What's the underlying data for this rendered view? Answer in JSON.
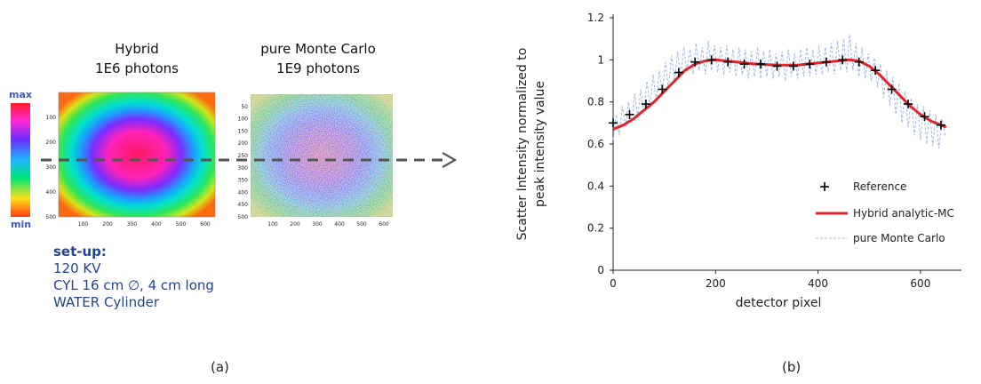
{
  "panel_a": {
    "label": "(a)",
    "colorbar": {
      "max": "max",
      "min": "min"
    },
    "hybrid": {
      "title_line1": "Hybrid",
      "title_line2": "1E6 photons",
      "y_ticks": [
        "100",
        "200",
        "300",
        "400",
        "500"
      ],
      "x_ticks": [
        "100",
        "200",
        "300",
        "400",
        "500",
        "600"
      ]
    },
    "mc": {
      "title_line1": "pure Monte Carlo",
      "title_line2": "1E9 photons",
      "y_ticks": [
        "50",
        "100",
        "150",
        "200",
        "250",
        "300",
        "350",
        "400",
        "450",
        "500"
      ],
      "x_ticks": [
        "100",
        "200",
        "300",
        "400",
        "500",
        "600"
      ]
    },
    "setup": {
      "heading": "set-up:",
      "line1": "120 KV",
      "line2": "CYL 16 cm ∅, 4 cm long",
      "line3": "WATER Cylinder"
    }
  },
  "panel_b": {
    "label": "(b)"
  },
  "chart_data": {
    "type": "line",
    "xlabel": "detector pixel",
    "ylabel_line1": "Scatter Intensity normalized to",
    "ylabel_line2": "peak intensity value",
    "xlim": [
      0,
      680
    ],
    "ylim": [
      0,
      1.2
    ],
    "x_ticks": [
      0,
      200,
      400,
      600
    ],
    "y_ticks": [
      0,
      0.2,
      0.4,
      0.6,
      0.8,
      1,
      1.2
    ],
    "x_tick_labels": [
      "0",
      "200",
      "400",
      "600"
    ],
    "y_tick_labels": [
      "0",
      "0.2",
      "0.4",
      "0.6",
      "0.8",
      "1",
      "1.2"
    ],
    "grid": false,
    "legend_position": "bottom-right",
    "series": [
      {
        "name": "Reference",
        "style": "plus-markers",
        "color": "#000000",
        "x": [
          0,
          32,
          64,
          96,
          128,
          160,
          192,
          224,
          256,
          288,
          320,
          352,
          384,
          416,
          448,
          480,
          512,
          544,
          576,
          608,
          640
        ],
        "y": [
          0.7,
          0.74,
          0.79,
          0.86,
          0.94,
          0.99,
          1.0,
          0.99,
          0.98,
          0.98,
          0.97,
          0.97,
          0.98,
          0.99,
          1.0,
          0.99,
          0.95,
          0.86,
          0.79,
          0.73,
          0.69
        ]
      },
      {
        "name": "Hybrid analytic-MC",
        "style": "solid",
        "color": "#e0262b",
        "x": [
          0,
          20,
          40,
          60,
          80,
          100,
          120,
          140,
          160,
          180,
          200,
          240,
          280,
          320,
          360,
          400,
          440,
          460,
          480,
          500,
          520,
          540,
          560,
          580,
          600,
          620,
          640,
          650
        ],
        "y": [
          0.67,
          0.69,
          0.72,
          0.76,
          0.8,
          0.85,
          0.9,
          0.95,
          0.98,
          0.995,
          1.0,
          0.99,
          0.98,
          0.975,
          0.975,
          0.985,
          0.995,
          1.0,
          0.995,
          0.97,
          0.93,
          0.88,
          0.83,
          0.78,
          0.74,
          0.71,
          0.69,
          0.68
        ]
      },
      {
        "name": "pure Monte Carlo",
        "style": "dashed",
        "color": "#9db8e0",
        "x": [
          0,
          6,
          12,
          18,
          24,
          30,
          36,
          42,
          48,
          54,
          60,
          66,
          72,
          78,
          84,
          90,
          96,
          102,
          108,
          114,
          120,
          126,
          132,
          138,
          144,
          150,
          156,
          162,
          168,
          174,
          180,
          186,
          192,
          198,
          204,
          210,
          216,
          222,
          228,
          234,
          240,
          246,
          252,
          258,
          264,
          270,
          276,
          282,
          288,
          294,
          300,
          306,
          312,
          318,
          324,
          330,
          336,
          342,
          348,
          354,
          360,
          366,
          372,
          378,
          384,
          390,
          396,
          402,
          408,
          414,
          420,
          426,
          432,
          438,
          444,
          450,
          456,
          462,
          468,
          474,
          480,
          486,
          492,
          498,
          504,
          510,
          516,
          522,
          528,
          534,
          540,
          546,
          552,
          558,
          564,
          570,
          576,
          582,
          588,
          594,
          600,
          606,
          612,
          618,
          624,
          630,
          636,
          642,
          648
        ],
        "y": [
          0.62,
          0.74,
          0.64,
          0.78,
          0.68,
          0.8,
          0.7,
          0.84,
          0.73,
          0.86,
          0.74,
          0.9,
          0.77,
          0.93,
          0.8,
          0.95,
          0.84,
          0.99,
          0.86,
          1.02,
          0.9,
          1.04,
          0.92,
          1.06,
          0.94,
          1.05,
          0.93,
          1.08,
          0.95,
          1.06,
          0.93,
          1.09,
          0.95,
          1.07,
          0.94,
          1.06,
          0.93,
          1.07,
          0.94,
          1.05,
          0.92,
          1.06,
          0.93,
          1.05,
          0.91,
          1.04,
          0.92,
          1.06,
          0.91,
          1.04,
          0.92,
          1.05,
          0.91,
          1.03,
          0.92,
          1.04,
          0.9,
          1.05,
          0.92,
          1.03,
          0.91,
          1.05,
          0.92,
          1.06,
          0.92,
          1.05,
          0.93,
          1.07,
          0.93,
          1.06,
          0.94,
          1.08,
          0.93,
          1.09,
          0.95,
          1.1,
          0.94,
          1.12,
          0.95,
          1.08,
          0.92,
          1.06,
          0.91,
          1.03,
          0.9,
          1.01,
          0.87,
          0.98,
          0.82,
          0.95,
          0.78,
          0.92,
          0.74,
          0.89,
          0.7,
          0.85,
          0.68,
          0.82,
          0.64,
          0.79,
          0.62,
          0.78,
          0.6,
          0.76,
          0.59,
          0.74,
          0.58,
          0.72,
          0.64
        ]
      }
    ]
  }
}
